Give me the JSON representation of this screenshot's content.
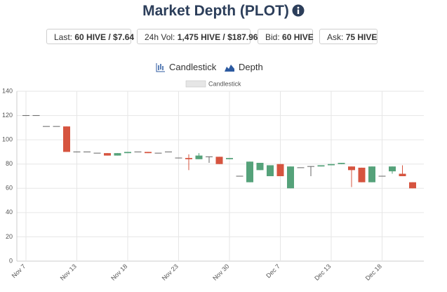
{
  "header": {
    "title": "Market Depth (PLOT)"
  },
  "stats": [
    {
      "label": "Last:",
      "value": "60 HIVE / $7.64"
    },
    {
      "label": "24h Vol:",
      "value": "1,475 HIVE / $187.96"
    },
    {
      "label": "Bid:",
      "value": "60 HIVE"
    },
    {
      "label": "Ask:",
      "value": "75 HIVE"
    }
  ],
  "toggles": [
    "Candlestick",
    "Depth"
  ],
  "chart_data": {
    "type": "candlestick",
    "categories": [
      "Nov 7",
      null,
      null,
      null,
      null,
      "Nov 13",
      null,
      null,
      null,
      null,
      "Nov 18",
      null,
      null,
      null,
      null,
      "Nov 23",
      null,
      null,
      null,
      null,
      "Nov 30",
      null,
      null,
      null,
      null,
      "Dec 7",
      null,
      null,
      null,
      null,
      "Dec 13",
      null,
      null,
      null,
      null,
      "Dec 18",
      null,
      null,
      null
    ],
    "series": [
      {
        "name": "Candlestick",
        "up_color": "#55a27a",
        "down_color": "#d6543f",
        "flat_color": "#666666",
        "open": [
          120,
          120,
          111,
          111,
          111,
          90,
          90,
          89,
          89,
          87,
          89,
          90,
          90,
          89,
          90,
          85,
          85,
          84,
          86,
          86,
          84,
          70,
          65,
          75,
          70,
          80,
          60,
          77,
          78,
          78,
          79,
          80,
          78,
          77,
          65,
          70,
          74,
          72,
          65
        ],
        "high": [
          120,
          120,
          111,
          111,
          111,
          90,
          90,
          89,
          89,
          89,
          90,
          90,
          90,
          89,
          90,
          85,
          88,
          89,
          86,
          86,
          85,
          70,
          82,
          81,
          79,
          80,
          78,
          77,
          78,
          79,
          80,
          81,
          78,
          77,
          78,
          70,
          78,
          79,
          65
        ],
        "low": [
          120,
          120,
          111,
          111,
          90,
          90,
          90,
          89,
          87,
          87,
          89,
          90,
          89,
          89,
          90,
          85,
          75,
          84,
          81,
          80,
          84,
          70,
          65,
          75,
          70,
          70,
          60,
          77,
          70,
          78,
          79,
          80,
          61,
          65,
          65,
          70,
          72,
          70,
          60
        ],
        "close": [
          120,
          120,
          111,
          111,
          90,
          90,
          90,
          89,
          87,
          89,
          90,
          90,
          89,
          89,
          90,
          85,
          84,
          87,
          86,
          80,
          85,
          70,
          82,
          81,
          79,
          70,
          78,
          77,
          78,
          79,
          80,
          81,
          75,
          65,
          78,
          70,
          78,
          70,
          60
        ]
      }
    ],
    "ylim": [
      0,
      140
    ],
    "yticks": [
      0,
      20,
      40,
      60,
      80,
      100,
      120,
      140
    ],
    "grid": true
  }
}
